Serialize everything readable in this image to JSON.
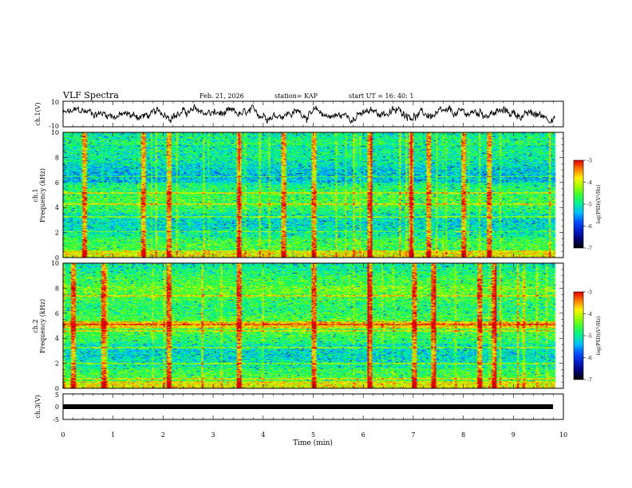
{
  "header": {
    "title": "VLF Spectra",
    "date": "Feb. 21, 2026",
    "station": "station= KAP",
    "start": "start  UT =   16: 40: 1"
  },
  "chart_data": [
    {
      "type": "line",
      "name": "ch1-voltage-trace",
      "ylabel": "ch.1(V)",
      "ylim": [
        -10,
        10
      ],
      "tick_labels": [
        "10",
        "-10"
      ],
      "x_range_min": [
        0,
        9.83
      ],
      "description_values": "noisy waveform spanning roughly -7 to +9 V"
    },
    {
      "type": "heatmap",
      "name": "ch1-spectrogram",
      "ylabel": "ch.1",
      "ylabel2": "Frequency (kHz)",
      "xlim": [
        0,
        10
      ],
      "ylim": [
        0,
        10
      ],
      "yticks": [
        "0",
        "2",
        "4",
        "6",
        "8",
        "10"
      ],
      "colorbar": {
        "label": "log(PSD)(V²/Hz)",
        "range": [
          -7,
          -3
        ],
        "ticks": [
          "-3",
          "-4",
          "-5",
          "-6",
          "-7"
        ]
      },
      "bright_vertical_events_min": [
        0.4,
        1.6,
        2.1,
        3.5,
        4.4,
        5.0,
        6.1,
        6.95,
        7.3,
        8.0,
        8.5
      ],
      "persistent_lines_khz": [
        2.1,
        3.3,
        4.3,
        5.2,
        6.5
      ]
    },
    {
      "type": "heatmap",
      "name": "ch2-spectrogram",
      "ylabel": "ch.2",
      "ylabel2": "Frequency (kHz)",
      "xlim": [
        0,
        10
      ],
      "ylim": [
        0,
        10
      ],
      "yticks": [
        "0",
        "2",
        "4",
        "6",
        "8",
        "10"
      ],
      "colorbar": {
        "label": "log(PSD)(V²/Hz)",
        "range": [
          -7,
          -3
        ],
        "ticks": [
          "-3",
          "-4",
          "-5",
          "-6",
          "-7"
        ]
      },
      "bright_vertical_events_min": [
        0.2,
        0.8,
        2.1,
        3.5,
        5.0,
        6.1,
        7.0,
        7.4,
        8.3,
        8.6
      ],
      "persistent_lines_khz": [
        0.8,
        2.0,
        3.3,
        4.6,
        5.1,
        7.4
      ]
    },
    {
      "type": "line",
      "name": "ch3-voltage-trace",
      "ylabel": "ch.3(V)",
      "ylim": [
        -5,
        5
      ],
      "tick_labels": [
        "5",
        "0",
        "-5"
      ],
      "constant_value_v": 0,
      "x_range_min": [
        0,
        9.83
      ]
    }
  ],
  "x_axis": {
    "label": "Time (min)",
    "ticks": [
      "0",
      "1",
      "2",
      "3",
      "4",
      "5",
      "6",
      "7",
      "8",
      "9",
      "10"
    ]
  }
}
